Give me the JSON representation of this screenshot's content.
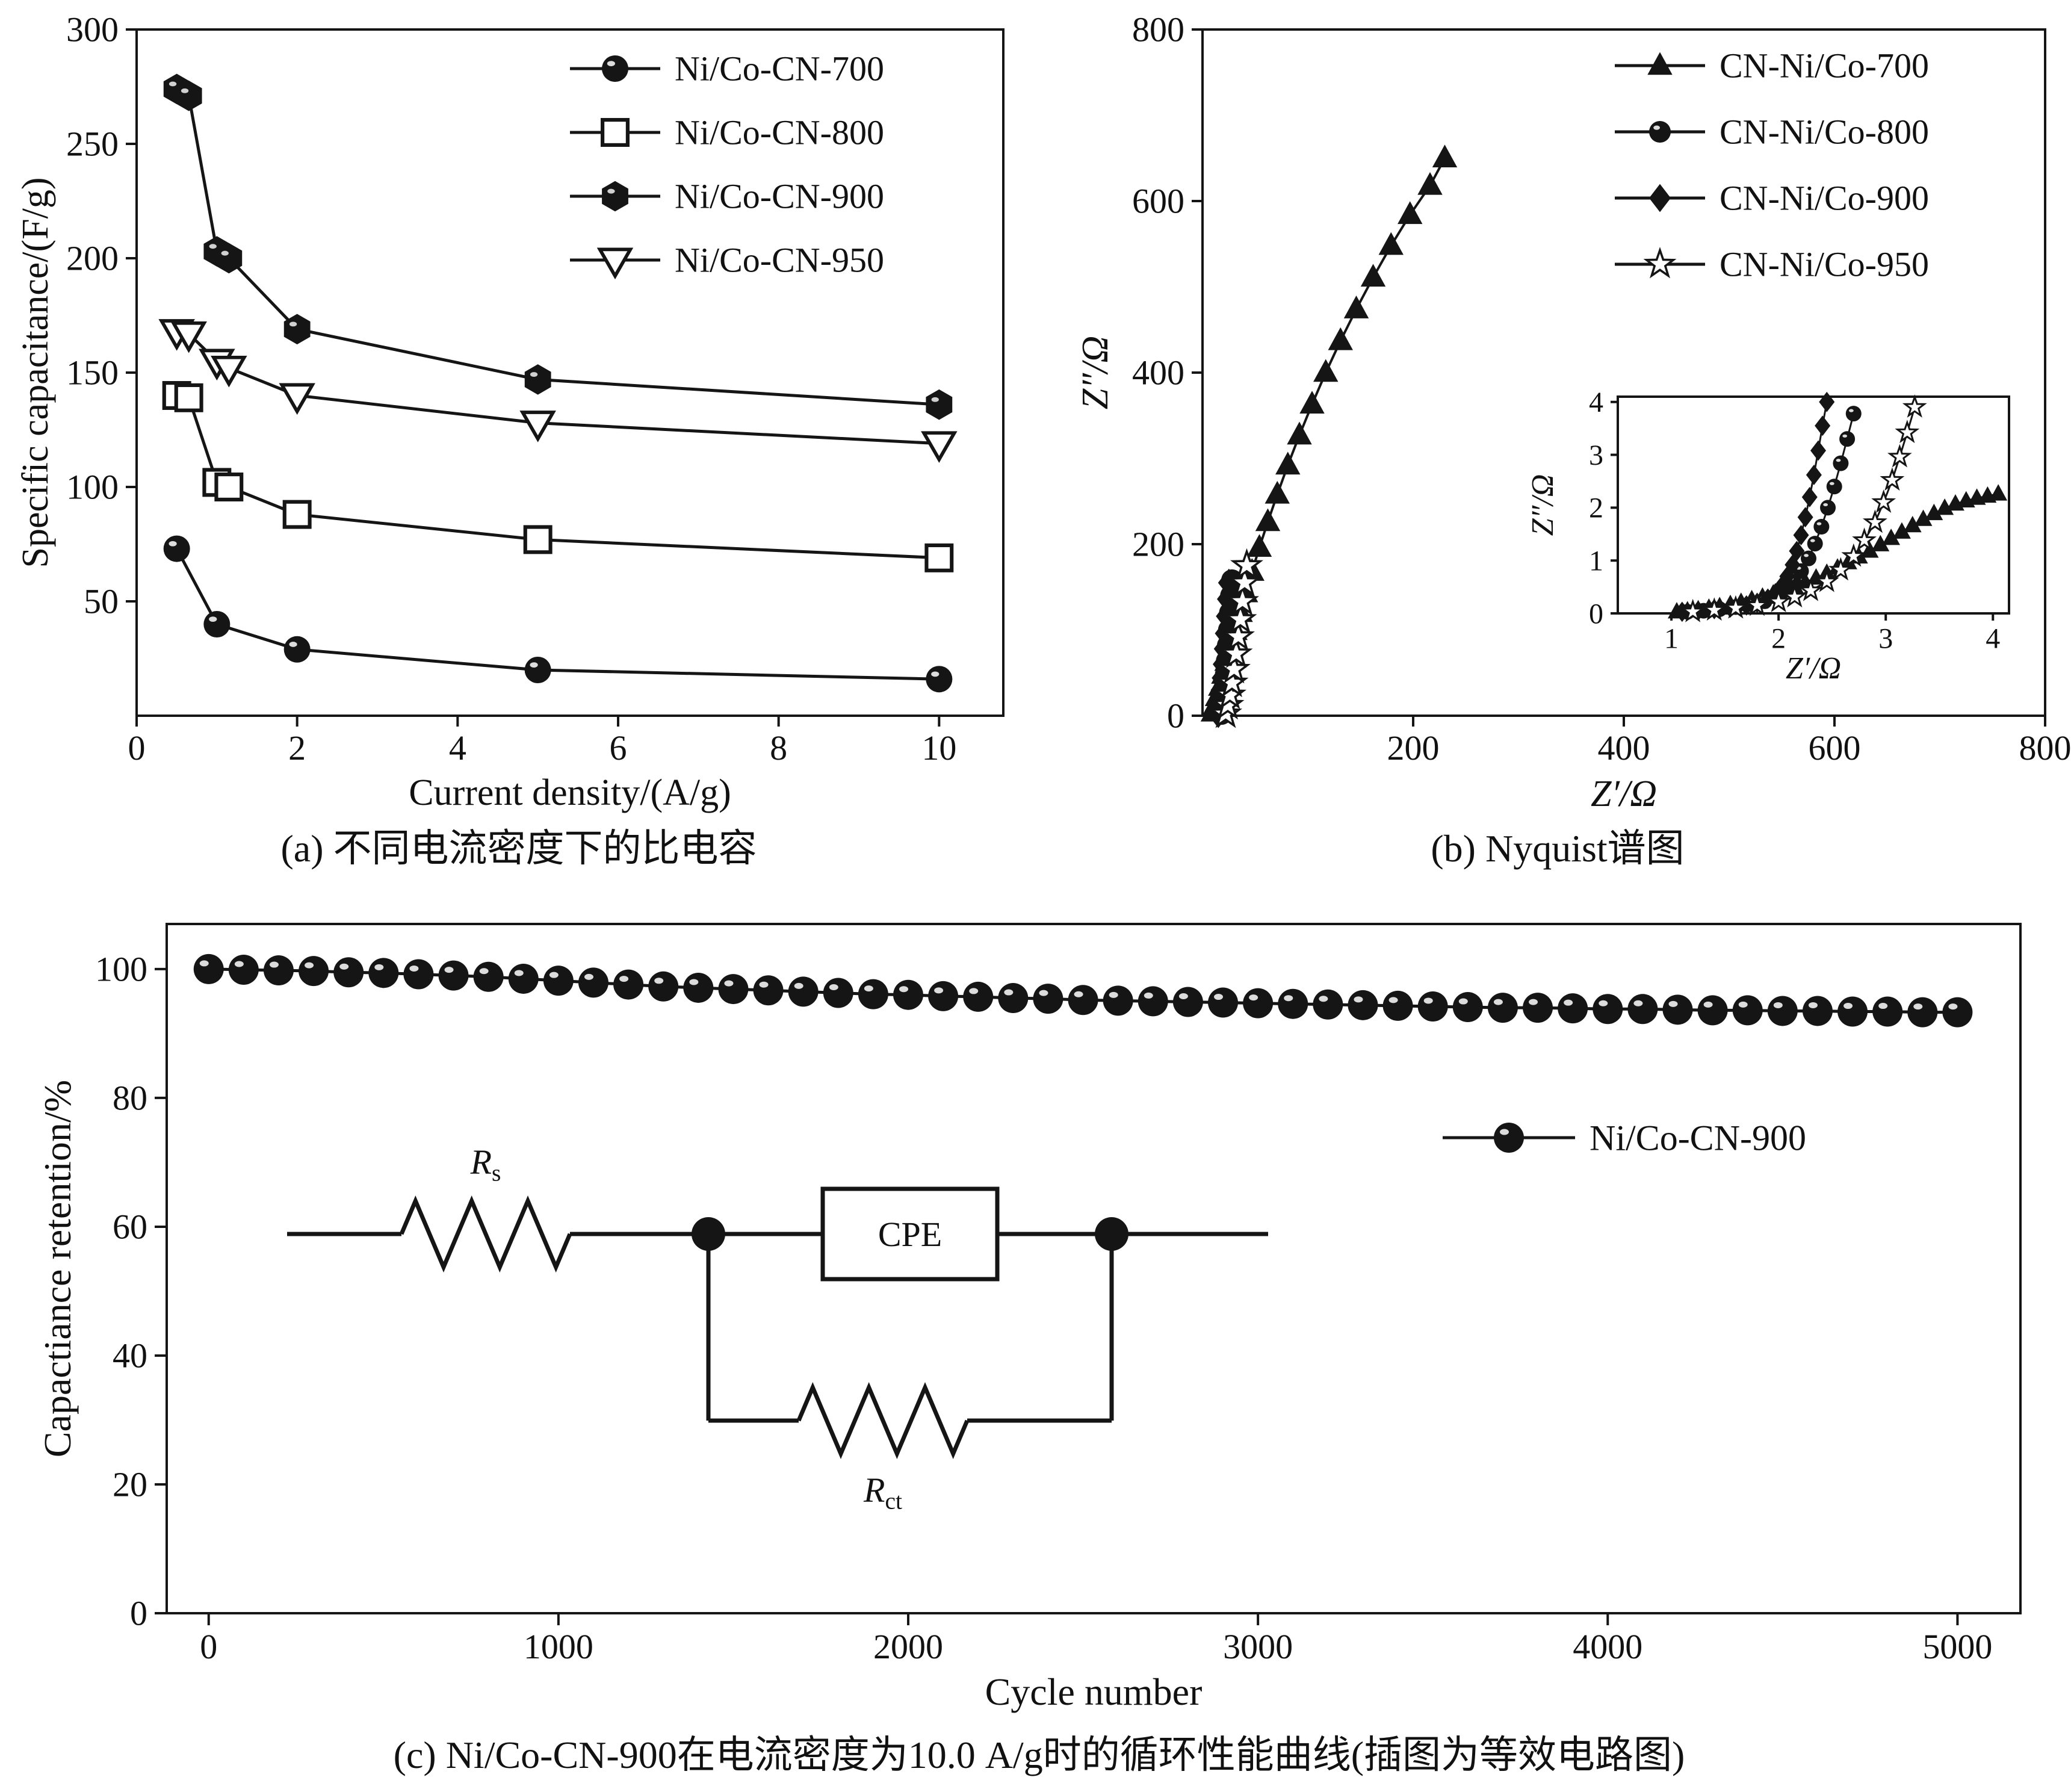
{
  "captions": {
    "a": "(a) 不同电流密度下的比电容",
    "b": "(b) Nyquist谱图",
    "c": "(c) Ni/Co-CN-900在电流密度为10.0 A/g时的循环性能曲线(插图为等效电路图)"
  },
  "colors": {
    "ink": "#151515",
    "background": "#ffffff"
  },
  "circuit": {
    "rs_main": "R",
    "rs_sub": "s",
    "cpe": "CPE",
    "rct_main": "R",
    "rct_sub": "ct"
  },
  "chart_data": [
    {
      "id": "a",
      "type": "line",
      "xlabel": "Current density/(A/g)",
      "ylabel": "Specific capacitance/(F/g)",
      "xlim": [
        0,
        10.8
      ],
      "ylim": [
        0,
        300
      ],
      "xticks": [
        0,
        2,
        4,
        6,
        8,
        10
      ],
      "yticks": [
        50,
        100,
        150,
        200,
        250,
        300
      ],
      "grid": false,
      "legend_position": "top-right",
      "series": [
        {
          "name": "Ni/Co-CN-700",
          "marker": "ball",
          "points": [
            [
              0.5,
              73
            ],
            [
              1,
              40
            ],
            [
              2,
              29
            ],
            [
              5,
              20
            ],
            [
              10,
              16
            ]
          ]
        },
        {
          "name": "Ni/Co-CN-800",
          "marker": "square-open",
          "points": [
            [
              0.5,
              140
            ],
            [
              0.65,
              139
            ],
            [
              1,
              102
            ],
            [
              1.15,
              100
            ],
            [
              2,
              88
            ],
            [
              5,
              77
            ],
            [
              10,
              69
            ]
          ]
        },
        {
          "name": "Ni/Co-CN-900",
          "marker": "hexagon",
          "points": [
            [
              0.5,
              274
            ],
            [
              0.65,
              271
            ],
            [
              1,
              203
            ],
            [
              1.15,
              200
            ],
            [
              2,
              169
            ],
            [
              5,
              147
            ],
            [
              10,
              136
            ]
          ]
        },
        {
          "name": "Ni/Co-CN-950",
          "marker": "triangle-down-open",
          "points": [
            [
              0.5,
              168
            ],
            [
              0.65,
              167
            ],
            [
              1,
              155
            ],
            [
              1.15,
              152
            ],
            [
              2,
              140
            ],
            [
              5,
              128
            ],
            [
              10,
              119
            ]
          ]
        }
      ]
    },
    {
      "id": "b",
      "type": "line",
      "xlabel": "Z′/Ω",
      "ylabel": "Z″/Ω",
      "xlim": [
        0,
        800
      ],
      "ylim": [
        0,
        800
      ],
      "xticks": [
        200,
        400,
        600,
        800
      ],
      "yticks": [
        0,
        200,
        400,
        600,
        800
      ],
      "grid": false,
      "legend_position": "top-right",
      "series": [
        {
          "name": "CN-Ni/Co-700",
          "marker": "triangle-up",
          "points": [
            [
              10,
              4
            ],
            [
              12,
              12
            ],
            [
              14,
              22
            ],
            [
              17,
              34
            ],
            [
              20,
              48
            ],
            [
              23,
              63
            ],
            [
              27,
              80
            ],
            [
              31,
              99
            ],
            [
              36,
              120
            ],
            [
              41,
              143
            ],
            [
              47,
              168
            ],
            [
              54,
              196
            ],
            [
              62,
              226
            ],
            [
              71,
              258
            ],
            [
              81,
              292
            ],
            [
              92,
              327
            ],
            [
              104,
              363
            ],
            [
              117,
              400
            ],
            [
              131,
              437
            ],
            [
              146,
              474
            ],
            [
              162,
              511
            ],
            [
              179,
              548
            ],
            [
              197,
              584
            ],
            [
              216,
              618
            ],
            [
              230,
              650
            ]
          ]
        },
        {
          "name": "CN-Ni/Co-800",
          "marker": "ball",
          "points": [
            [
              18,
              2
            ],
            [
              19,
              10
            ],
            [
              20,
              20
            ],
            [
              21,
              33
            ],
            [
              22,
              48
            ],
            [
              23,
              64
            ],
            [
              24,
              82
            ],
            [
              25,
              100
            ],
            [
              26,
              120
            ],
            [
              27,
              140
            ],
            [
              28,
              158
            ]
          ]
        },
        {
          "name": "CN-Ni/Co-900",
          "marker": "diamond",
          "points": [
            [
              15,
              2
            ],
            [
              16,
              9
            ],
            [
              17,
              18
            ],
            [
              18,
              30
            ],
            [
              19,
              44
            ],
            [
              20,
              60
            ],
            [
              21,
              78
            ],
            [
              22,
              96
            ],
            [
              23,
              116
            ],
            [
              24,
              136
            ],
            [
              25,
              155
            ]
          ]
        },
        {
          "name": "CN-Ni/Co-950",
          "marker": "star-open",
          "points": [
            [
              22,
              2
            ],
            [
              24,
              12
            ],
            [
              26,
              24
            ],
            [
              28,
              38
            ],
            [
              30,
              54
            ],
            [
              32,
              72
            ],
            [
              34,
              92
            ],
            [
              36,
              112
            ],
            [
              38,
              133
            ],
            [
              40,
              155
            ],
            [
              42,
              175
            ]
          ]
        }
      ],
      "inset": {
        "xlabel": "Z′/Ω",
        "ylabel": "Z″/Ω",
        "xlim": [
          0.5,
          4.15
        ],
        "ylim": [
          0,
          4.1
        ],
        "xticks": [
          1,
          2,
          3,
          4
        ],
        "yticks": [
          0,
          1,
          2,
          3,
          4
        ],
        "series": [
          {
            "name": "CN-Ni/Co-700",
            "marker": "triangle-up",
            "points": [
              [
                1.05,
                0.03
              ],
              [
                1.15,
                0.05
              ],
              [
                1.25,
                0.07
              ],
              [
                1.35,
                0.1
              ],
              [
                1.45,
                0.13
              ],
              [
                1.55,
                0.17
              ],
              [
                1.65,
                0.21
              ],
              [
                1.75,
                0.26
              ],
              [
                1.85,
                0.31
              ],
              [
                1.95,
                0.37
              ],
              [
                2.05,
                0.44
              ],
              [
                2.15,
                0.51
              ],
              [
                2.25,
                0.59
              ],
              [
                2.35,
                0.67
              ],
              [
                2.45,
                0.76
              ],
              [
                2.55,
                0.86
              ],
              [
                2.65,
                0.96
              ],
              [
                2.75,
                1.07
              ],
              [
                2.85,
                1.18
              ],
              [
                2.95,
                1.3
              ],
              [
                3.05,
                1.42
              ],
              [
                3.15,
                1.54
              ],
              [
                3.25,
                1.66
              ],
              [
                3.35,
                1.78
              ],
              [
                3.45,
                1.89
              ],
              [
                3.55,
                1.99
              ],
              [
                3.65,
                2.07
              ],
              [
                3.75,
                2.13
              ],
              [
                3.85,
                2.18
              ],
              [
                3.95,
                2.22
              ],
              [
                4.05,
                2.26
              ]
            ]
          },
          {
            "name": "CN-Ni/Co-800",
            "marker": "ball",
            "points": [
              [
                1.15,
                0.03
              ],
              [
                1.3,
                0.05
              ],
              [
                1.45,
                0.08
              ],
              [
                1.6,
                0.12
              ],
              [
                1.75,
                0.17
              ],
              [
                1.87,
                0.23
              ],
              [
                1.97,
                0.32
              ],
              [
                2.06,
                0.44
              ],
              [
                2.14,
                0.6
              ],
              [
                2.21,
                0.8
              ],
              [
                2.28,
                1.04
              ],
              [
                2.34,
                1.32
              ],
              [
                2.4,
                1.64
              ],
              [
                2.46,
                2.0
              ],
              [
                2.52,
                2.4
              ],
              [
                2.58,
                2.84
              ],
              [
                2.64,
                3.3
              ],
              [
                2.7,
                3.78
              ]
            ]
          },
          {
            "name": "CN-Ni/Co-900",
            "marker": "diamond",
            "points": [
              [
                1.1,
                0.03
              ],
              [
                1.25,
                0.05
              ],
              [
                1.4,
                0.08
              ],
              [
                1.55,
                0.11
              ],
              [
                1.7,
                0.15
              ],
              [
                1.8,
                0.2
              ],
              [
                1.9,
                0.28
              ],
              [
                1.97,
                0.38
              ],
              [
                2.03,
                0.52
              ],
              [
                2.08,
                0.7
              ],
              [
                2.13,
                0.92
              ],
              [
                2.17,
                1.18
              ],
              [
                2.21,
                1.48
              ],
              [
                2.25,
                1.82
              ],
              [
                2.29,
                2.2
              ],
              [
                2.33,
                2.62
              ],
              [
                2.37,
                3.08
              ],
              [
                2.41,
                3.55
              ],
              [
                2.45,
                4.0
              ]
            ]
          },
          {
            "name": "CN-Ni/Co-950",
            "marker": "star-open",
            "points": [
              [
                1.2,
                0.03
              ],
              [
                1.4,
                0.06
              ],
              [
                1.6,
                0.1
              ],
              [
                1.8,
                0.15
              ],
              [
                2.0,
                0.22
              ],
              [
                2.15,
                0.31
              ],
              [
                2.3,
                0.43
              ],
              [
                2.45,
                0.6
              ],
              [
                2.58,
                0.82
              ],
              [
                2.7,
                1.08
              ],
              [
                2.8,
                1.38
              ],
              [
                2.9,
                1.72
              ],
              [
                2.98,
                2.1
              ],
              [
                3.06,
                2.52
              ],
              [
                3.13,
                2.96
              ],
              [
                3.2,
                3.42
              ],
              [
                3.27,
                3.9
              ]
            ]
          }
        ]
      }
    },
    {
      "id": "c",
      "type": "line",
      "xlabel": "Cycle number",
      "ylabel": "Capactiance retention/%",
      "xlim": [
        -120,
        5180
      ],
      "ylim": [
        0,
        107
      ],
      "xticks": [
        0,
        1000,
        2000,
        3000,
        4000,
        5000
      ],
      "yticks": [
        0,
        20,
        40,
        60,
        80,
        100
      ],
      "grid": false,
      "legend_position": "right-middle",
      "series": [
        {
          "name": "Ni/Co-CN-900",
          "marker": "ball",
          "x_start": 0,
          "x_step": 100,
          "values": [
            100.0,
            99.9,
            99.8,
            99.7,
            99.5,
            99.4,
            99.2,
            99.0,
            98.8,
            98.5,
            98.2,
            97.9,
            97.6,
            97.3,
            97.1,
            96.9,
            96.7,
            96.5,
            96.3,
            96.1,
            96.0,
            95.8,
            95.7,
            95.5,
            95.4,
            95.2,
            95.1,
            95.0,
            94.9,
            94.8,
            94.7,
            94.6,
            94.5,
            94.4,
            94.3,
            94.2,
            94.1,
            94.0,
            94.0,
            93.9,
            93.8,
            93.8,
            93.7,
            93.6,
            93.6,
            93.5,
            93.5,
            93.4,
            93.4,
            93.3,
            93.3
          ]
        }
      ]
    }
  ]
}
